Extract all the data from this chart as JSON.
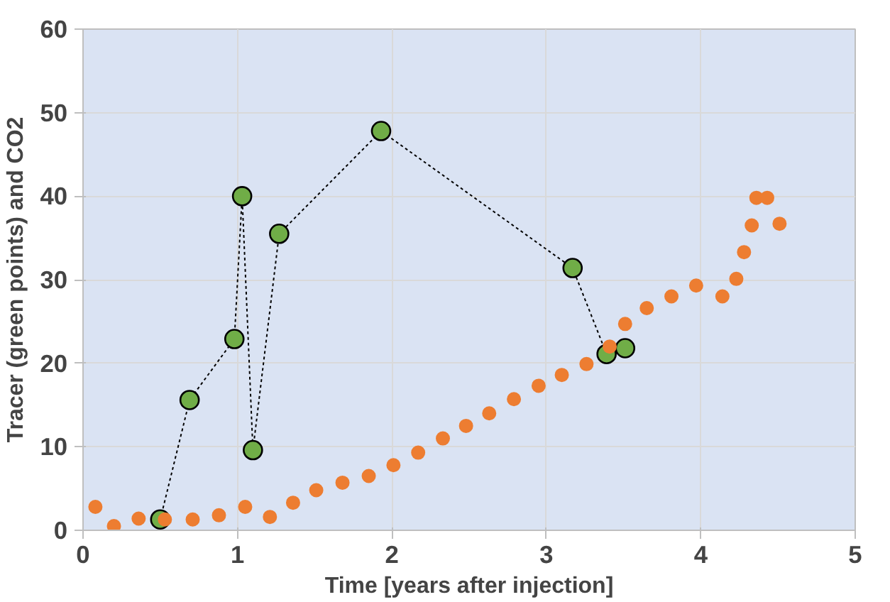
{
  "chart_data": {
    "type": "scatter",
    "xlabel": "Time [years after injection]",
    "ylabel": "Tracer (green points) and CO2",
    "xlim": [
      0,
      5
    ],
    "ylim": [
      0,
      60
    ],
    "xticks": [
      0,
      1,
      2,
      3,
      4,
      5
    ],
    "yticks": [
      0,
      10,
      20,
      30,
      40,
      50,
      60
    ],
    "grid": true,
    "marker": "circle",
    "series": [
      {
        "color": "#ed7d31",
        "x": [
          0.08,
          0.2,
          0.36,
          0.53,
          0.71,
          0.88,
          1.05,
          1.21,
          1.36,
          1.51,
          1.68,
          1.85,
          2.01,
          2.17,
          2.33,
          2.48,
          2.63,
          2.79,
          2.95,
          3.1,
          3.26,
          3.41,
          3.51,
          3.65,
          3.81,
          3.97,
          4.14,
          4.23,
          4.28,
          4.33,
          4.36,
          4.43,
          4.51
        ],
        "values": [
          2.8,
          0.5,
          1.4,
          1.3,
          1.3,
          1.8,
          2.8,
          1.6,
          3.3,
          4.8,
          5.7,
          6.5,
          7.8,
          9.3,
          11,
          12.5,
          14,
          15.7,
          17.3,
          18.6,
          19.9,
          22,
          24.7,
          26.6,
          28,
          29.3,
          28,
          30.1,
          33.3,
          36.5,
          39.8,
          39.8,
          36.7
        ]
      },
      {
        "type": "line",
        "color": "#70ad47",
        "line_style": "dotted",
        "x": [
          0.5,
          0.69,
          0.98,
          1.03,
          1.1,
          1.27,
          1.93,
          3.17,
          3.39,
          3.51
        ],
        "values": [
          1.3,
          15.6,
          22.9,
          40,
          9.6,
          35.5,
          47.8,
          31.4,
          21.1,
          21.8
        ]
      }
    ]
  }
}
